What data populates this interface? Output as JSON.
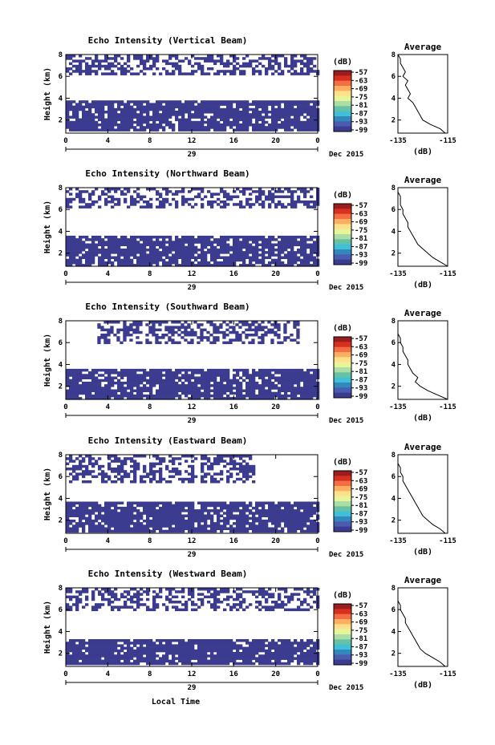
{
  "xlabel": "Local Time",
  "heatmap_axis": {
    "x_ticks": [
      "0",
      "4",
      "8",
      "12",
      "16",
      "20",
      "0"
    ],
    "y_ticks": [
      "8",
      "6",
      "4",
      "2"
    ],
    "ylabel": "Height (km)",
    "date_day": "29",
    "date_right": "Dec 2015",
    "xlim": [
      0,
      24
    ],
    "ylim": [
      0.8,
      8
    ]
  },
  "colorbar": {
    "unit": "(dB)",
    "labels": [
      "-57",
      "-63",
      "-69",
      "-75",
      "-81",
      "-87",
      "-93",
      "-99"
    ],
    "colors": [
      "#9b1c1c",
      "#d7301f",
      "#f46d43",
      "#fdae61",
      "#fee08b",
      "#e6f598",
      "#abdda4",
      "#66c2a5",
      "#3fbfd8",
      "#3288bd",
      "#4a5bb0",
      "#3b3b8f"
    ]
  },
  "average": {
    "title": "Average",
    "xlabel": "(dB)",
    "x_ticks": [
      "-135",
      "-115"
    ],
    "y_ticks": [
      "8",
      "6",
      "4",
      "2"
    ],
    "xlim": [
      -135,
      -115
    ],
    "ylim": [
      0.8,
      8
    ]
  },
  "chart_data": [
    {
      "type": "heatmap",
      "title": "Echo Intensity (Vertical Beam)",
      "blocks": [
        {
          "t0": 0,
          "t1": 24,
          "h0": 1.0,
          "h1": 3.8
        },
        {
          "t0": 0,
          "t1": 24,
          "h0": 6.2,
          "h1": 8.0
        }
      ],
      "average_profile": {
        "height": [
          0.8,
          1.2,
          1.6,
          2.0,
          2.4,
          2.8,
          3.2,
          3.6,
          4.0,
          4.4,
          4.8,
          5.2,
          5.6,
          6.0,
          6.4,
          6.8,
          7.2,
          7.6,
          8.0
        ],
        "db": [
          -116,
          -118,
          -122,
          -125,
          -126,
          -127,
          -128,
          -129,
          -131,
          -130,
          -131,
          -132,
          -131,
          -133,
          -132,
          -133,
          -134,
          -134,
          -135
        ]
      }
    },
    {
      "type": "heatmap",
      "title": "Echo Intensity (Northward Beam)",
      "blocks": [
        {
          "t0": 0,
          "t1": 24,
          "h0": 1.0,
          "h1": 3.6
        },
        {
          "t0": 0,
          "t1": 24,
          "h0": 6.3,
          "h1": 8.0
        }
      ],
      "average_profile": {
        "height": [
          0.8,
          1.2,
          1.6,
          2.0,
          2.4,
          2.8,
          3.2,
          3.6,
          4.0,
          4.4,
          4.8,
          5.2,
          5.6,
          6.0,
          6.4,
          6.8,
          7.2,
          7.6,
          8.0
        ],
        "db": [
          -115,
          -118,
          -121,
          -123,
          -125,
          -127,
          -128,
          -129,
          -130,
          -131,
          -131,
          -132,
          -133,
          -133,
          -134,
          -134,
          -134,
          -135,
          -135
        ]
      }
    },
    {
      "type": "heatmap",
      "title": "Echo Intensity (Southward Beam)",
      "blocks": [
        {
          "t0": 0,
          "t1": 24,
          "h0": 1.0,
          "h1": 3.6
        },
        {
          "t0": 3,
          "t1": 22,
          "h0": 6.0,
          "h1": 8.0
        }
      ],
      "average_profile": {
        "height": [
          0.8,
          1.2,
          1.6,
          2.0,
          2.4,
          2.8,
          3.2,
          3.6,
          4.0,
          4.4,
          4.8,
          5.2,
          5.6,
          6.0,
          6.4,
          6.8,
          7.2,
          7.6,
          8.0
        ],
        "db": [
          -115,
          -119,
          -123,
          -126,
          -128,
          -127,
          -129,
          -130,
          -131,
          -131,
          -132,
          -133,
          -133,
          -134,
          -134,
          -135,
          -135,
          -135,
          -135
        ]
      }
    },
    {
      "type": "heatmap",
      "title": "Echo Intensity (Eastward Beam)",
      "blocks": [
        {
          "t0": 0,
          "t1": 24,
          "h0": 1.0,
          "h1": 3.7
        },
        {
          "t0": 0,
          "t1": 18,
          "h0": 5.5,
          "h1": 8.0
        }
      ],
      "average_profile": {
        "height": [
          0.8,
          1.2,
          1.6,
          2.0,
          2.4,
          2.8,
          3.2,
          3.6,
          4.0,
          4.4,
          4.8,
          5.2,
          5.6,
          6.0,
          6.4,
          6.8,
          7.2,
          7.6,
          8.0
        ],
        "db": [
          -116,
          -118,
          -121,
          -123,
          -125,
          -126,
          -127,
          -128,
          -129,
          -130,
          -131,
          -132,
          -133,
          -133,
          -134,
          -134,
          -135,
          -135,
          -135
        ]
      }
    },
    {
      "type": "heatmap",
      "title": "Echo Intensity (Westward Beam)",
      "blocks": [
        {
          "t0": 0,
          "t1": 24,
          "h0": 1.0,
          "h1": 3.3
        },
        {
          "t0": 0,
          "t1": 24,
          "h0": 6.0,
          "h1": 8.0
        }
      ],
      "average_profile": {
        "height": [
          0.8,
          1.2,
          1.6,
          2.0,
          2.4,
          2.8,
          3.2,
          3.6,
          4.0,
          4.4,
          4.8,
          5.2,
          5.6,
          6.0,
          6.4,
          6.8,
          7.2,
          7.6,
          8.0
        ],
        "db": [
          -116,
          -118,
          -121,
          -124,
          -126,
          -127,
          -128,
          -129,
          -130,
          -131,
          -132,
          -132,
          -133,
          -134,
          -134,
          -135,
          -135,
          -135,
          -135
        ]
      }
    }
  ]
}
